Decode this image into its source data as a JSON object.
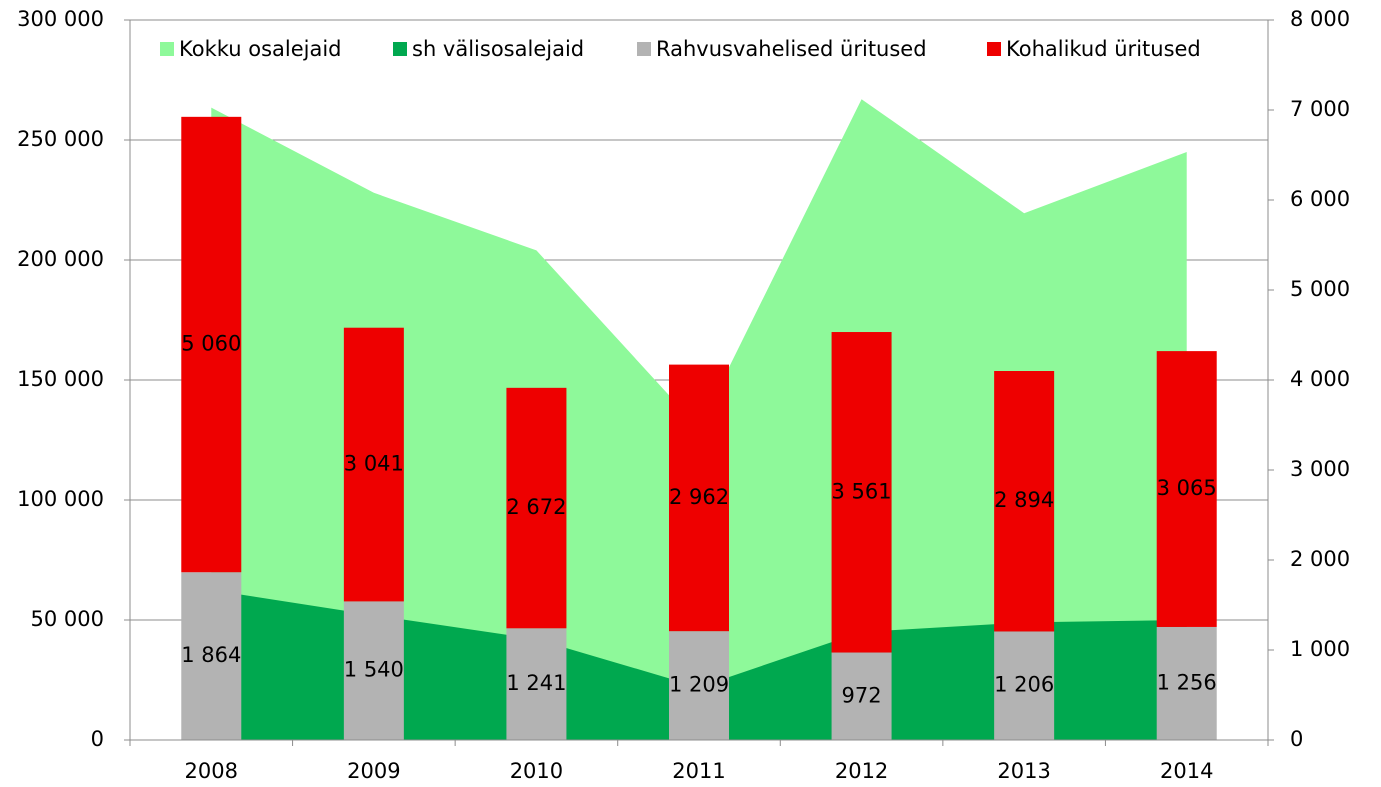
{
  "chart_data": {
    "type": "bar",
    "categories": [
      "2008",
      "2009",
      "2010",
      "2011",
      "2012",
      "2013",
      "2014"
    ],
    "ylim": [
      0,
      300000
    ],
    "yticks": [
      0,
      {
        "value": 50000,
        "label": "50 000"
      },
      {
        "value": 100000,
        "label": "100 000"
      },
      {
        "value": 150000,
        "label": "150 000"
      },
      {
        "value": 200000,
        "label": "200 000"
      },
      {
        "value": 250000,
        "label": "250 000"
      },
      {
        "value": 300000,
        "label": "300 000"
      }
    ],
    "y2lim": [
      0,
      8000
    ],
    "y2ticks": [
      0,
      {
        "value": 1000,
        "label": "1 000"
      },
      {
        "value": 2000,
        "label": "2 000"
      },
      {
        "value": 3000,
        "label": "3 000"
      },
      {
        "value": 4000,
        "label": "4 000"
      },
      {
        "value": 5000,
        "label": "5 000"
      },
      {
        "value": 6000,
        "label": "6 000"
      },
      {
        "value": 7000,
        "label": "7 000"
      },
      {
        "value": 8000,
        "label": "8 000"
      }
    ],
    "grid": true,
    "legend": "top",
    "series": [
      {
        "name": "Kokku osalejaid",
        "type": "area",
        "color": "#8ef99a",
        "values": [
          263500,
          228000,
          204000,
          130000,
          267000,
          219500,
          245000
        ]
      },
      {
        "name": "sh välisosalejaid",
        "type": "area",
        "color": "#00a84f",
        "values": [
          62500,
          52000,
          42000,
          22000,
          45000,
          49000,
          50000
        ]
      },
      {
        "name": "Rahvusvahelised üritused",
        "type": "bar",
        "axis": "y2",
        "color": "#b3b3b3",
        "values": [
          1864,
          1540,
          1241,
          1209,
          972,
          1206,
          1256
        ],
        "value_labels": [
          "1 864",
          "1 540",
          "1 241",
          "1 209",
          "972",
          "1 206",
          "1 256"
        ]
      },
      {
        "name": "Kohalikud üritused",
        "type": "bar",
        "axis": "y2",
        "color": "#ee0000",
        "values": [
          5060,
          3041,
          2672,
          2962,
          3561,
          2894,
          3065
        ],
        "value_labels": [
          "5 060",
          "3 041",
          "2 672",
          "2 962",
          "3 561",
          "2 894",
          "3 065"
        ]
      }
    ]
  }
}
